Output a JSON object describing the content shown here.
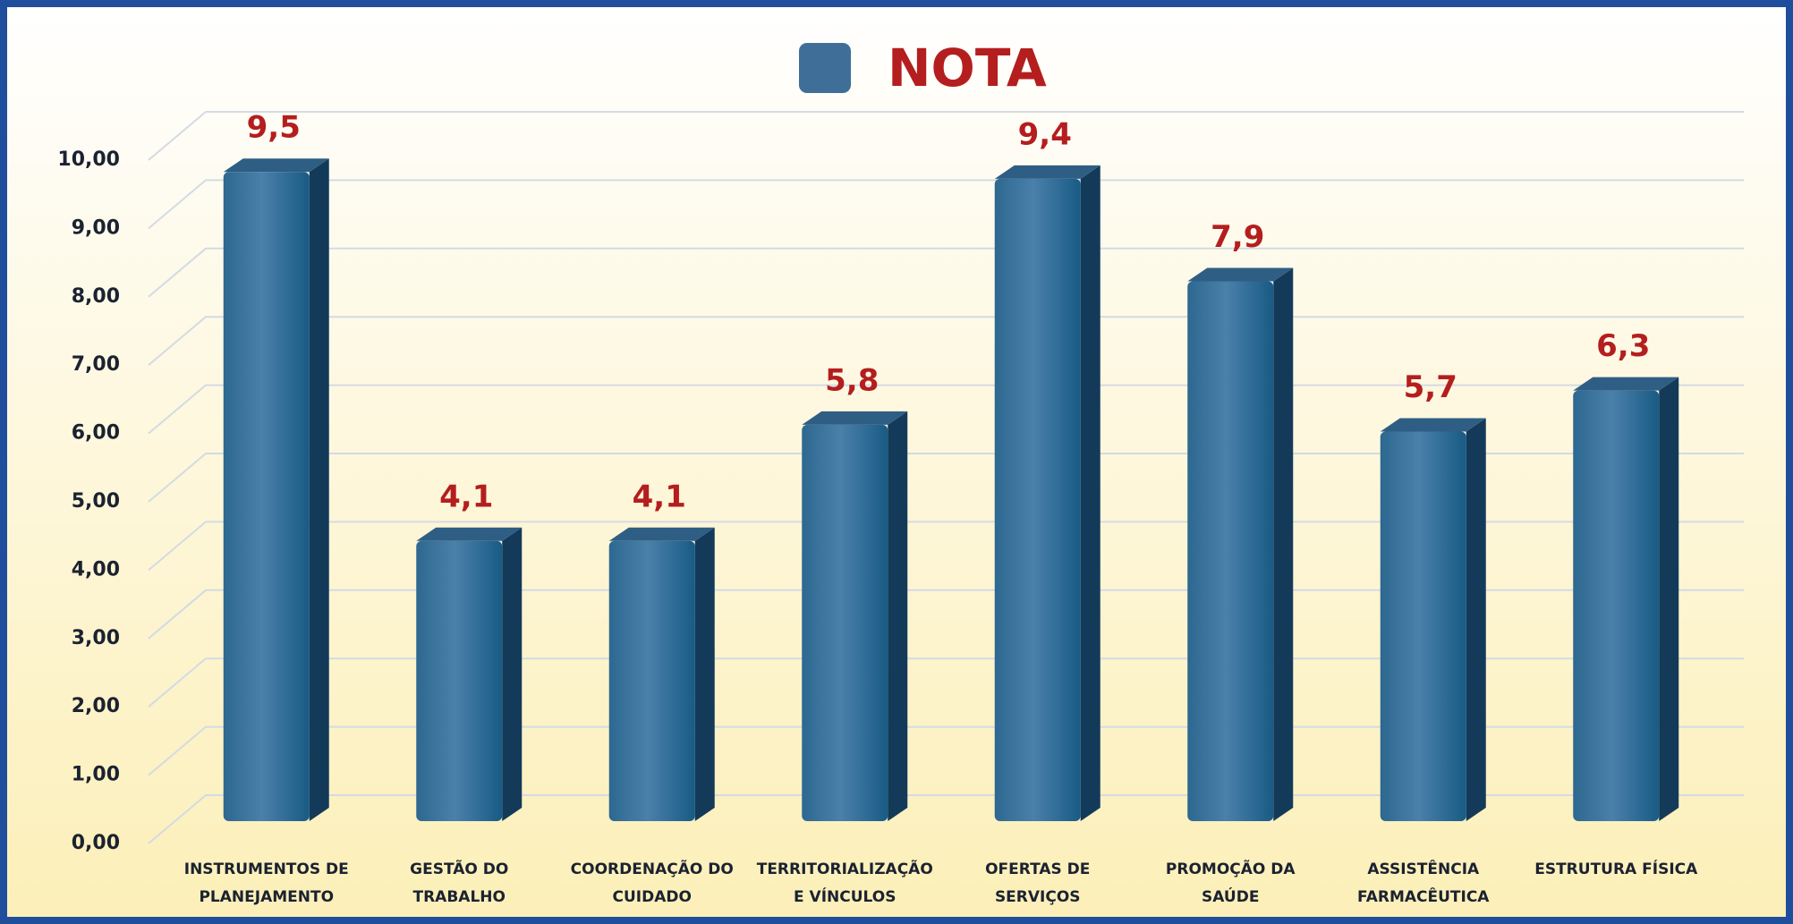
{
  "chart_data": {
    "type": "bar3d",
    "categories": [
      [
        "INSTRUMENTOS DE",
        "PLANEJAMENTO"
      ],
      [
        "GESTÃO DO",
        "TRABALHO"
      ],
      [
        "COORDENAÇÃO DO",
        "CUIDADO"
      ],
      [
        "TERRITORIALIZAÇÃO",
        "E VÍNCULOS"
      ],
      [
        "OFERTAS DE",
        "SERVIÇOS"
      ],
      [
        "PROMOÇÃO DA",
        "SAÚDE"
      ],
      [
        "ASSISTÊNCIA",
        "FARMACÊUTICA"
      ],
      [
        "ESTRUTURA FÍSICA"
      ]
    ],
    "series": [
      {
        "name": "NOTA",
        "color": "#3f6f98",
        "values": [
          9.5,
          4.1,
          4.1,
          5.8,
          9.4,
          7.9,
          5.7,
          6.3
        ],
        "value_labels": [
          "9,5",
          "4,1",
          "4,1",
          "5,8",
          "9,4",
          "7,9",
          "5,7",
          "6,3"
        ]
      }
    ],
    "ylim": [
      0,
      10
    ],
    "yticks": [
      {
        "value": 0,
        "label": "0,00"
      },
      {
        "value": 1,
        "label": "1,00"
      },
      {
        "value": 2,
        "label": "2,00"
      },
      {
        "value": 3,
        "label": "3,00"
      },
      {
        "value": 4,
        "label": "4,00"
      },
      {
        "value": 5,
        "label": "5,00"
      },
      {
        "value": 6,
        "label": "6,00"
      },
      {
        "value": 7,
        "label": "7,00"
      },
      {
        "value": 8,
        "label": "8,00"
      },
      {
        "value": 9,
        "label": "9,00"
      },
      {
        "value": 10,
        "label": "10,00"
      }
    ],
    "grid": true,
    "legend": "top"
  }
}
